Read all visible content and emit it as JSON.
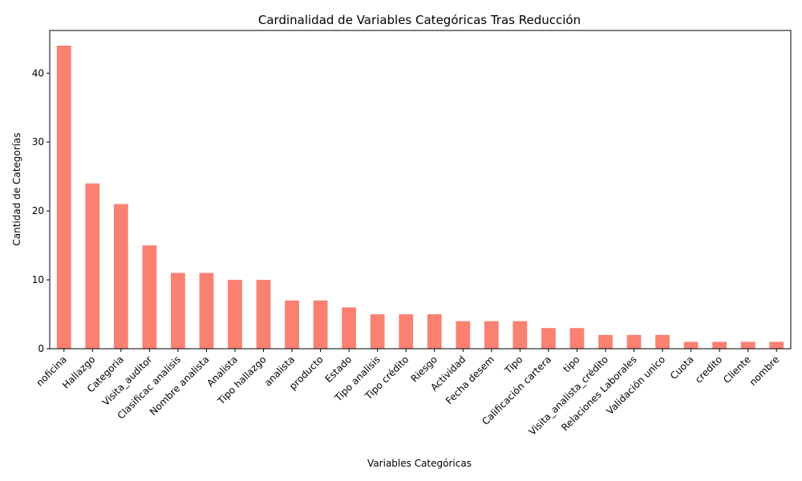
{
  "chart_data": {
    "type": "bar",
    "title": "Cardinalidad de Variables Categóricas Tras Reducción",
    "xlabel": "Variables Categóricas",
    "ylabel": "Cantidad de Categorías",
    "ylim": [
      0,
      46.2
    ],
    "yticks": [
      0,
      10,
      20,
      30,
      40
    ],
    "grid": false,
    "legend": "none",
    "bar_color": "#fa8072",
    "categories": [
      "noficina",
      "Hallazgo",
      "Categoria",
      "Visita_auditor",
      "Clasificac analisis",
      "Nombre analista",
      "Analista",
      "Tipo hallazgo",
      "analista",
      "producto",
      "Estado",
      "Tipo analisis",
      "Tipo crédito",
      "Riesgo",
      "Actividad",
      "Fecha desem",
      "Tipo",
      "Calificación cartera",
      "tipo",
      "Visita_analista_crédito",
      "Relaciones Laborales",
      "Validación unico",
      "Cuota",
      "credito",
      "Cliente",
      "nombre"
    ],
    "values": [
      44,
      24,
      21,
      15,
      11,
      11,
      10,
      10,
      7,
      7,
      6,
      5,
      5,
      5,
      4,
      4,
      4,
      3,
      3,
      2,
      2,
      2,
      1,
      1,
      1,
      1
    ]
  }
}
